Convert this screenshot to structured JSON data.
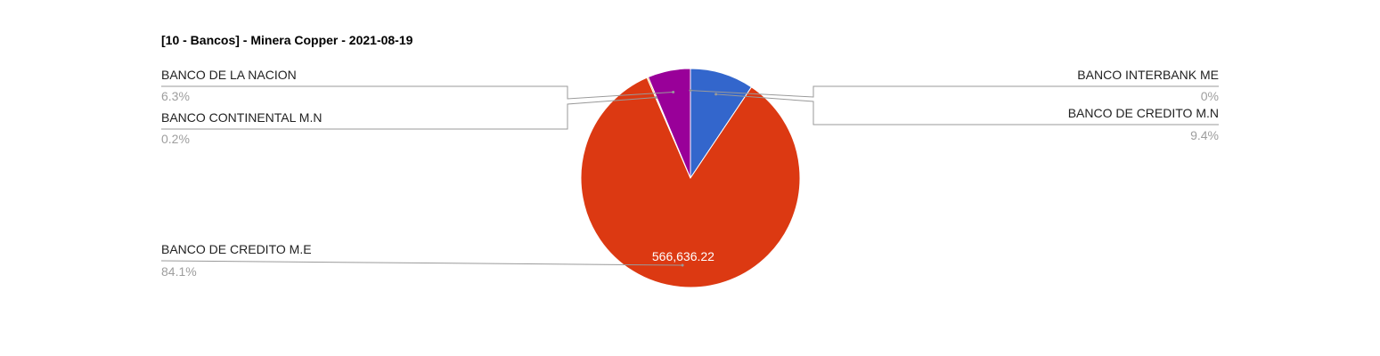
{
  "chart_data": {
    "type": "pie",
    "title": "[10 - Bancos] - Minera Copper - 2021-08-19",
    "slices": [
      {
        "name": "BANCO DE CREDITO M.N",
        "percent": 9.4,
        "label": "9.4%",
        "color": "#3366cc"
      },
      {
        "name": "BANCO DE CREDITO M.E",
        "percent": 84.1,
        "label": "84.1%",
        "value_label": "566,636.22",
        "color": "#dc3912"
      },
      {
        "name": "BANCO CONTINENTAL M.N",
        "percent": 0.2,
        "label": "0.2%",
        "color": "#ff9900"
      },
      {
        "name": "BANCO DE LA NACION",
        "percent": 6.3,
        "label": "6.3%",
        "color": "#990099"
      },
      {
        "name": "BANCO INTERBANK ME",
        "percent": 0.0,
        "label": "0%",
        "color": "#109618"
      }
    ],
    "legend": "labeled"
  }
}
